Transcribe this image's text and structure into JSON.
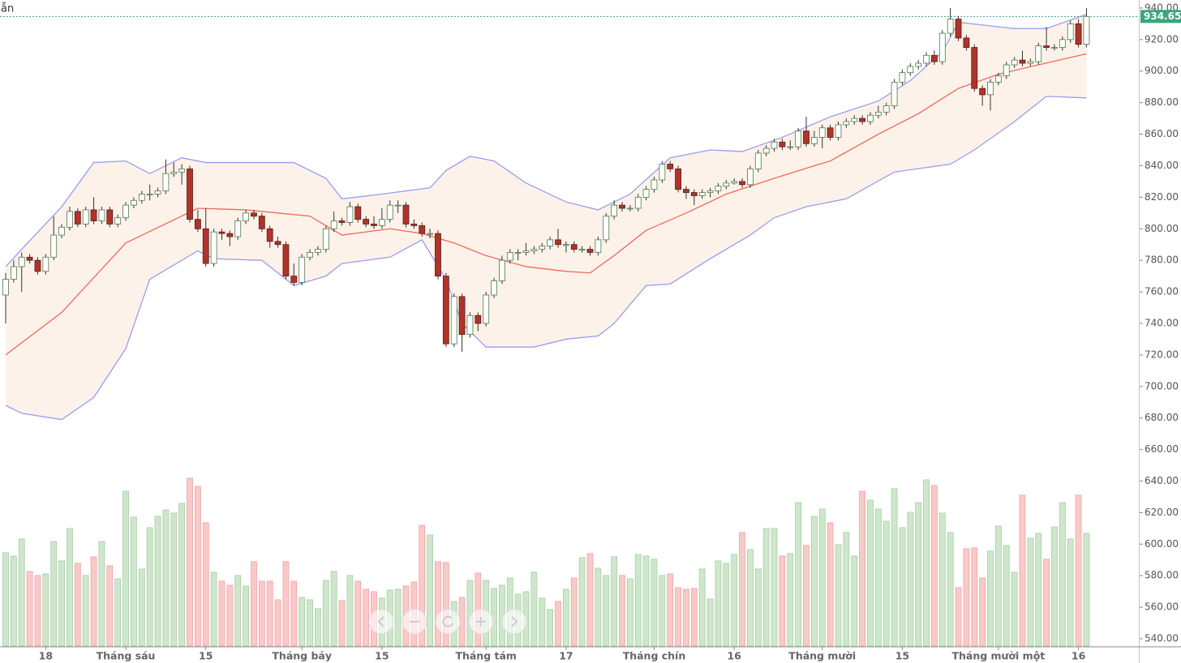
{
  "chart_data": {
    "type": "candlestick",
    "corner_text": "ẫn",
    "open": [
      758,
      768,
      776,
      782,
      780,
      773,
      782,
      796,
      801,
      811,
      803,
      812,
      805,
      812,
      803,
      807,
      815,
      818,
      822,
      822,
      824,
      835,
      836,
      838,
      806,
      800,
      778,
      798,
      797,
      795,
      805,
      810,
      808,
      800,
      792,
      790,
      770,
      766,
      782,
      785,
      787,
      800,
      805,
      804,
      814,
      806,
      803,
      802,
      806,
      815,
      815,
      803,
      802,
      797,
      797,
      770,
      727,
      757,
      733,
      745,
      740,
      758,
      767,
      780,
      785,
      785,
      786,
      787,
      789,
      793,
      790,
      790,
      787,
      787,
      785,
      793,
      808,
      815,
      813,
      813,
      820,
      825,
      831,
      841,
      838,
      825,
      823,
      821,
      823,
      824,
      827,
      829,
      830,
      828,
      838,
      848,
      851,
      855,
      852,
      852,
      862,
      854,
      858,
      864,
      858,
      866,
      868,
      870,
      868,
      872,
      874,
      878,
      893,
      899,
      903,
      905,
      910,
      906,
      924,
      933,
      921,
      915,
      889,
      885,
      893,
      897,
      904,
      907,
      905,
      906,
      916,
      915,
      915,
      920,
      930,
      917
    ],
    "high": [
      772,
      780,
      785,
      784,
      782,
      784,
      808,
      803,
      814,
      813,
      814,
      820,
      814,
      814,
      809,
      817,
      820,
      824,
      828,
      826,
      844,
      842,
      841,
      840,
      812,
      813,
      800,
      800,
      799,
      807,
      812,
      812,
      810,
      802,
      795,
      792,
      778,
      784,
      787,
      789,
      802,
      811,
      807,
      817,
      816,
      808,
      808,
      813,
      818,
      818,
      817,
      806,
      804,
      800,
      799,
      772,
      759,
      759,
      747,
      747,
      760,
      769,
      783,
      787,
      787,
      791,
      789,
      791,
      795,
      800,
      792,
      792,
      789,
      789,
      795,
      810,
      818,
      817,
      815,
      822,
      827,
      833,
      843,
      843,
      840,
      827,
      825,
      825,
      826,
      829,
      831,
      832,
      832,
      840,
      850,
      853,
      857,
      857,
      856,
      864,
      871,
      862,
      866,
      866,
      868,
      870,
      872,
      872,
      874,
      878,
      880,
      895,
      901,
      905,
      907,
      912,
      913,
      926,
      940,
      935,
      923,
      917,
      891,
      895,
      899,
      906,
      909,
      913,
      908,
      918,
      928,
      917,
      922,
      932,
      933,
      940
    ],
    "low": [
      740,
      766,
      760,
      778,
      771,
      771,
      780,
      794,
      799,
      801,
      801,
      803,
      803,
      801,
      801,
      805,
      813,
      816,
      818,
      820,
      822,
      833,
      828,
      804,
      798,
      776,
      776,
      793,
      789,
      793,
      803,
      806,
      798,
      788,
      788,
      768,
      764,
      764,
      780,
      783,
      785,
      798,
      802,
      802,
      804,
      801,
      800,
      800,
      804,
      810,
      801,
      800,
      795,
      794,
      768,
      725,
      725,
      722,
      731,
      735,
      738,
      756,
      765,
      778,
      780,
      783,
      784,
      785,
      787,
      788,
      785,
      785,
      785,
      783,
      783,
      791,
      806,
      811,
      811,
      811,
      818,
      823,
      829,
      836,
      823,
      819,
      815,
      819,
      820,
      822,
      825,
      828,
      826,
      826,
      836,
      846,
      849,
      850,
      850,
      850,
      852,
      852,
      851,
      856,
      856,
      864,
      866,
      866,
      866,
      870,
      872,
      876,
      891,
      897,
      901,
      903,
      904,
      904,
      922,
      919,
      913,
      887,
      878,
      875,
      891,
      895,
      902,
      903,
      903,
      904,
      913,
      913,
      913,
      918,
      915,
      915
    ],
    "close": [
      768,
      776,
      782,
      780,
      773,
      782,
      796,
      801,
      811,
      803,
      812,
      805,
      812,
      803,
      807,
      815,
      818,
      822,
      822,
      824,
      835,
      836,
      838,
      806,
      800,
      778,
      798,
      797,
      795,
      805,
      810,
      808,
      800,
      792,
      790,
      770,
      766,
      782,
      785,
      787,
      800,
      805,
      804,
      814,
      806,
      803,
      802,
      806,
      815,
      815,
      803,
      802,
      797,
      797,
      770,
      727,
      757,
      733,
      745,
      740,
      758,
      767,
      780,
      785,
      785,
      786,
      787,
      789,
      793,
      790,
      790,
      787,
      787,
      785,
      793,
      808,
      815,
      813,
      813,
      820,
      825,
      831,
      841,
      838,
      825,
      823,
      821,
      823,
      824,
      827,
      829,
      830,
      828,
      838,
      848,
      851,
      855,
      852,
      852,
      862,
      854,
      858,
      864,
      858,
      866,
      868,
      870,
      868,
      872,
      874,
      878,
      893,
      899,
      903,
      905,
      910,
      906,
      924,
      933,
      921,
      915,
      889,
      885,
      893,
      897,
      904,
      907,
      905,
      906,
      916,
      915,
      915,
      920,
      930,
      917,
      934.65
    ],
    "volume": [
      115,
      111,
      132,
      92,
      87,
      89,
      129,
      105,
      145,
      102,
      87,
      110,
      129,
      99,
      83,
      191,
      159,
      95,
      146,
      160,
      168,
      164,
      176,
      207,
      197,
      152,
      91,
      80,
      75,
      87,
      74,
      104,
      80,
      80,
      57,
      104,
      80,
      60,
      57,
      46,
      81,
      92,
      56,
      87,
      80,
      70,
      67,
      59,
      69,
      70,
      74,
      79,
      149,
      137,
      104,
      103,
      55,
      60,
      81,
      90,
      81,
      71,
      75,
      84,
      64,
      67,
      91,
      59,
      45,
      55,
      70,
      84,
      109,
      114,
      96,
      87,
      110,
      87,
      83,
      113,
      111,
      107,
      87,
      89,
      72,
      70,
      71,
      95,
      58,
      105,
      102,
      113,
      140,
      119,
      95,
      145,
      145,
      111,
      114,
      177,
      124,
      160,
      169,
      152,
      125,
      140,
      111,
      191,
      180,
      169,
      154,
      194,
      146,
      165,
      177,
      205,
      198,
      164,
      140,
      72,
      120,
      121,
      84,
      117,
      148,
      124,
      91,
      186,
      133,
      139,
      107,
      147,
      177,
      132,
      186,
      139
    ],
    "upper": {
      "x": [
        0,
        2,
        7,
        11,
        15,
        18,
        22,
        25,
        30,
        36,
        40,
        42,
        47,
        53,
        55,
        58,
        61,
        65,
        70,
        74,
        78,
        83,
        88,
        92,
        97,
        103,
        109,
        113,
        117,
        119,
        126,
        130,
        135
      ],
      "values": [
        776,
        787,
        814,
        842,
        843,
        835,
        845,
        842,
        842,
        842,
        832,
        819,
        822,
        826,
        837,
        846,
        843,
        829,
        817,
        812,
        822,
        845,
        850,
        849,
        858,
        871,
        881,
        894,
        912,
        931,
        927,
        927,
        936
      ]
    },
    "middle": {
      "x": [
        0,
        7,
        15,
        24,
        30,
        38,
        42,
        48,
        52,
        56,
        60,
        65,
        70,
        73,
        76,
        80,
        85,
        90,
        96,
        101,
        103,
        109,
        114,
        119,
        124,
        129,
        135
      ],
      "values": [
        720,
        747,
        791,
        813,
        812,
        808,
        796,
        800,
        797,
        791,
        783,
        776,
        773,
        772,
        783,
        799,
        810,
        822,
        832,
        840,
        843,
        860,
        873,
        889,
        898,
        904,
        911
      ]
    },
    "lower": {
      "x": [
        0,
        2,
        7,
        11,
        15,
        18,
        24,
        26,
        32,
        36,
        40,
        42,
        48,
        52,
        55,
        57,
        60,
        66,
        70,
        74,
        76,
        80,
        83,
        88,
        93,
        96,
        100,
        105,
        111,
        118,
        121,
        126,
        130,
        135
      ],
      "values": [
        688,
        683,
        679,
        693,
        724,
        768,
        786,
        781,
        780,
        764,
        770,
        778,
        782,
        793,
        768,
        740,
        725,
        725,
        730,
        732,
        740,
        764,
        765,
        781,
        796,
        807,
        814,
        819,
        836,
        841,
        850,
        868,
        884,
        883
      ]
    },
    "colors": {
      "up": "#4d7a4d",
      "down": "#b0342a",
      "up_volume": "#cfe6cd",
      "down_volume": "#f8c9c9",
      "band": "#9a9cee",
      "middle": "#ef6b5b",
      "band_fill": "#fdf2ea",
      "last": "#3aa57a"
    },
    "ylim": [
      535.4,
      945.1
    ],
    "yticks": [
      {
        "value": 540,
        "label": "540.00"
      },
      {
        "value": 560,
        "label": "560.00"
      },
      {
        "value": 580,
        "label": "580.00"
      },
      {
        "value": 600,
        "label": "600.00"
      },
      {
        "value": 620,
        "label": "620.00"
      },
      {
        "value": 640,
        "label": "640.00"
      },
      {
        "value": 660,
        "label": "660.00"
      },
      {
        "value": 680,
        "label": "680.00"
      },
      {
        "value": 700,
        "label": "700.00"
      },
      {
        "value": 720,
        "label": "720.00"
      },
      {
        "value": 740,
        "label": "740.00"
      },
      {
        "value": 760,
        "label": "760.00"
      },
      {
        "value": 780,
        "label": "780.00"
      },
      {
        "value": 800,
        "label": "800.00"
      },
      {
        "value": 820,
        "label": "820.00"
      },
      {
        "value": 840,
        "label": "840.00"
      },
      {
        "value": 860,
        "label": "860.00"
      },
      {
        "value": 880,
        "label": "880.00"
      },
      {
        "value": 900,
        "label": "900.00"
      },
      {
        "value": 920,
        "label": "920.00"
      },
      {
        "value": 940,
        "label": "940.00"
      }
    ],
    "xticks": [
      {
        "value": 5,
        "label": "18"
      },
      {
        "value": 15,
        "label": "Tháng sáu"
      },
      {
        "value": 25,
        "label": "15"
      },
      {
        "value": 37,
        "label": "Tháng bảy"
      },
      {
        "value": 47,
        "label": "15"
      },
      {
        "value": 60,
        "label": "Tháng tám"
      },
      {
        "value": 70,
        "label": "17"
      },
      {
        "value": 81,
        "label": "Tháng chín"
      },
      {
        "value": 91,
        "label": "16"
      },
      {
        "value": 102,
        "label": "Tháng mười"
      },
      {
        "value": 112,
        "label": "15"
      },
      {
        "value": 124,
        "label": "Tháng mười một"
      },
      {
        "value": 134,
        "label": "16"
      }
    ]
  }
}
